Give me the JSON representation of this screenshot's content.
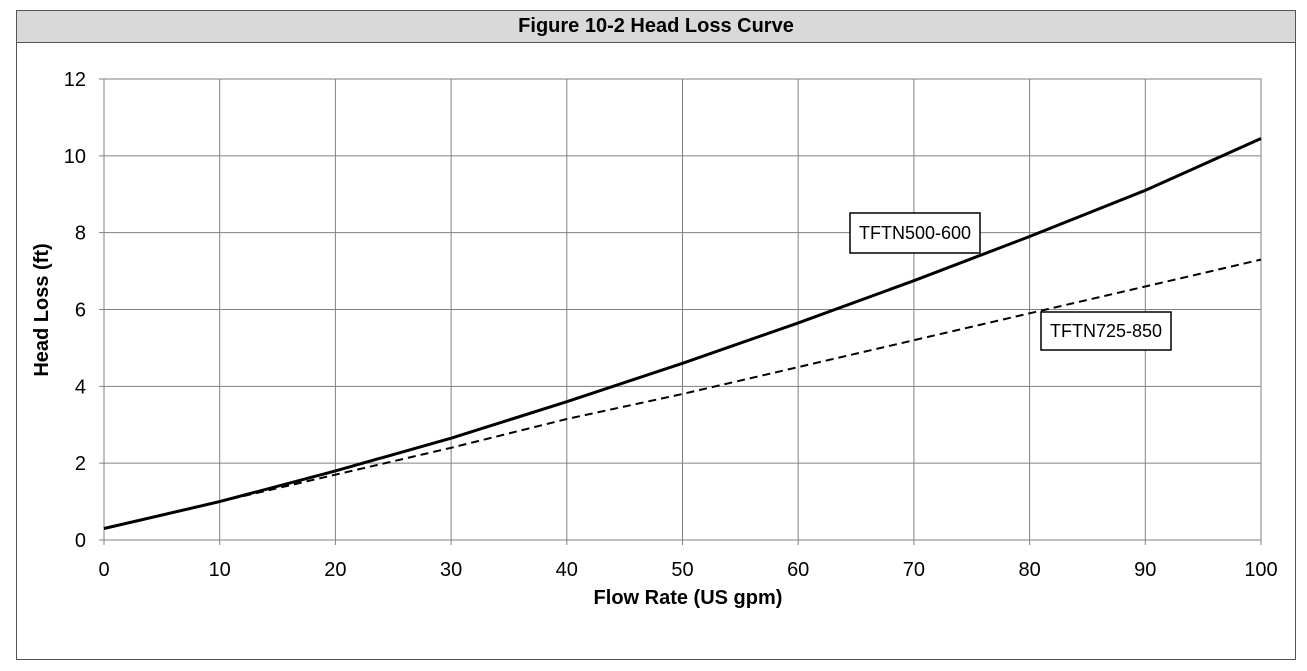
{
  "figure": {
    "title": "Figure 10-2 Head Loss Curve"
  },
  "chart_data": {
    "type": "line",
    "title": "Figure 10-2 Head Loss Curve",
    "xlabel": "Flow Rate (US gpm)",
    "ylabel": "Head Loss (ft)",
    "xlim": [
      0,
      100
    ],
    "ylim": [
      0,
      12
    ],
    "xticks": [
      0,
      10,
      20,
      30,
      40,
      50,
      60,
      70,
      80,
      90,
      100
    ],
    "yticks": [
      0,
      2,
      4,
      6,
      8,
      10,
      12
    ],
    "grid": true,
    "legend": "callouts",
    "series": [
      {
        "name": "TFTN500-600",
        "style": "solid",
        "color": "#000000",
        "x": [
          0,
          10,
          20,
          30,
          40,
          50,
          60,
          70,
          80,
          90,
          100
        ],
        "y": [
          0.3,
          1.0,
          1.8,
          2.65,
          3.6,
          4.6,
          5.65,
          6.75,
          7.9,
          9.1,
          10.45
        ]
      },
      {
        "name": "TFTN725-850",
        "style": "dashed",
        "color": "#000000",
        "x": [
          0,
          10,
          20,
          30,
          40,
          50,
          60,
          70,
          80,
          90,
          100
        ],
        "y": [
          0.3,
          1.0,
          1.7,
          2.4,
          3.15,
          3.8,
          4.5,
          5.2,
          5.9,
          6.6,
          7.3
        ]
      }
    ]
  }
}
